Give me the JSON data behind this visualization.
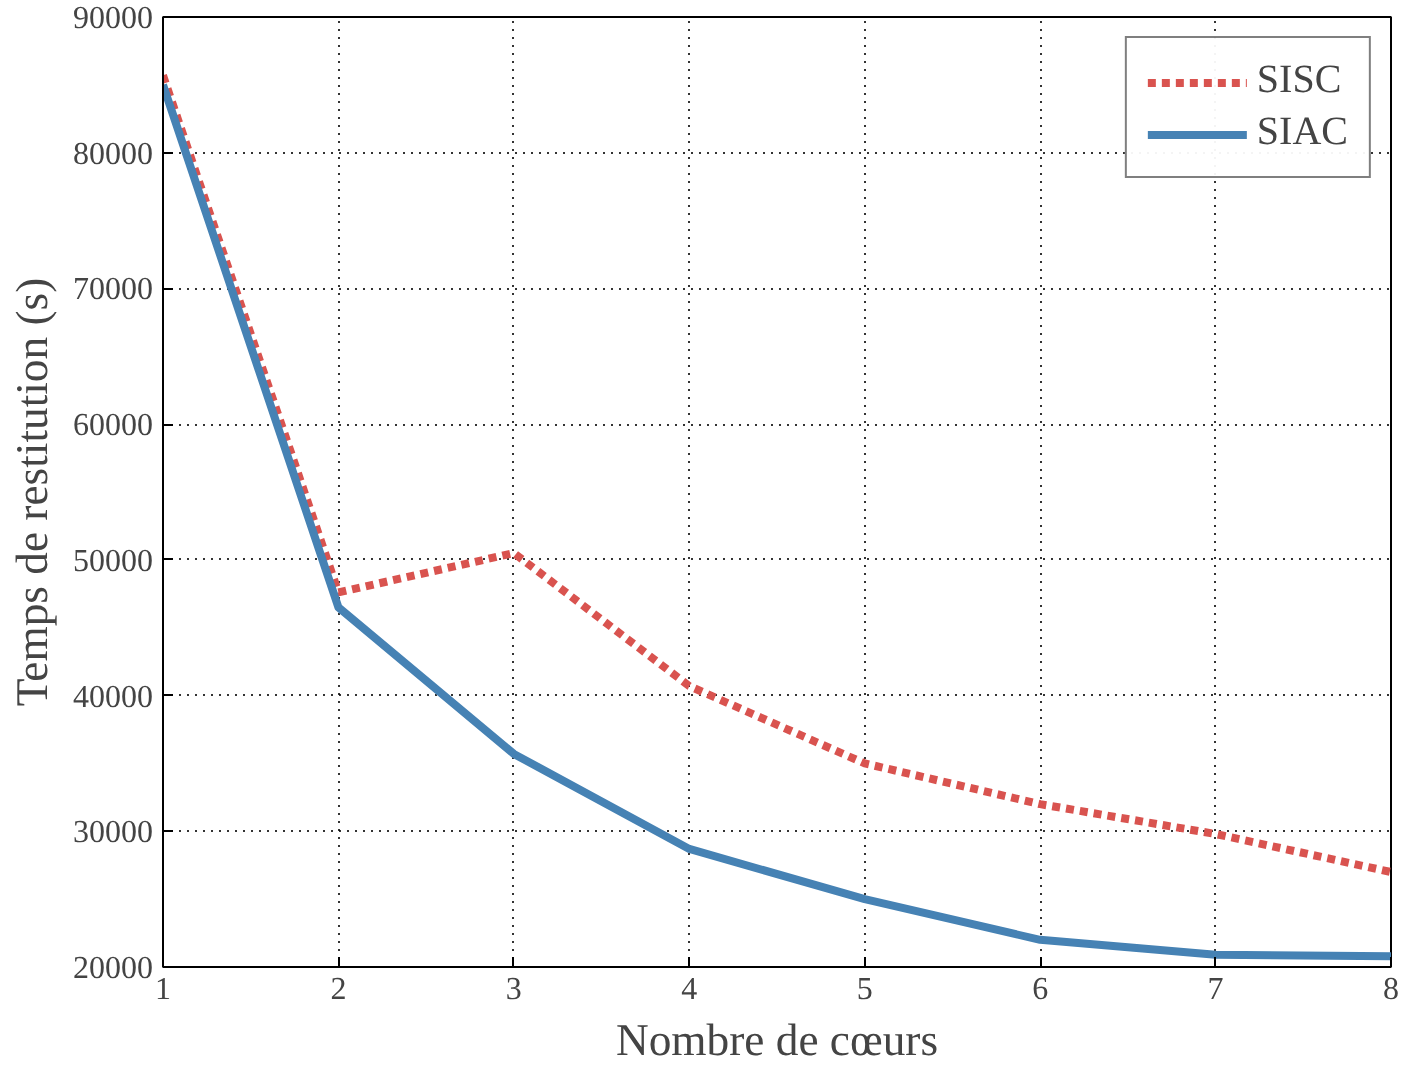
{
  "chart_data": {
    "type": "line",
    "xlabel": "Nombre de cœurs",
    "ylabel": "Temps de restitution (s)",
    "x": [
      1,
      2,
      3,
      4,
      5,
      6,
      7,
      8
    ],
    "series": [
      {
        "name": "SISC",
        "color": "#d9534f",
        "line_style": "dotted",
        "values": [
          85700,
          47600,
          50500,
          40700,
          35000,
          32000,
          29800,
          27000
        ]
      },
      {
        "name": "SIAC",
        "color": "#4682b4",
        "line_style": "solid",
        "values": [
          85000,
          46500,
          35700,
          28700,
          25000,
          22000,
          20900,
          20800
        ]
      }
    ],
    "xlim": [
      1,
      8
    ],
    "ylim": [
      20000,
      90000
    ],
    "xticks": [
      1,
      2,
      3,
      4,
      5,
      6,
      7,
      8
    ],
    "yticks": [
      20000,
      30000,
      40000,
      50000,
      60000,
      70000,
      80000,
      90000
    ],
    "grid": true,
    "legend": "top right",
    "marker": "none"
  }
}
